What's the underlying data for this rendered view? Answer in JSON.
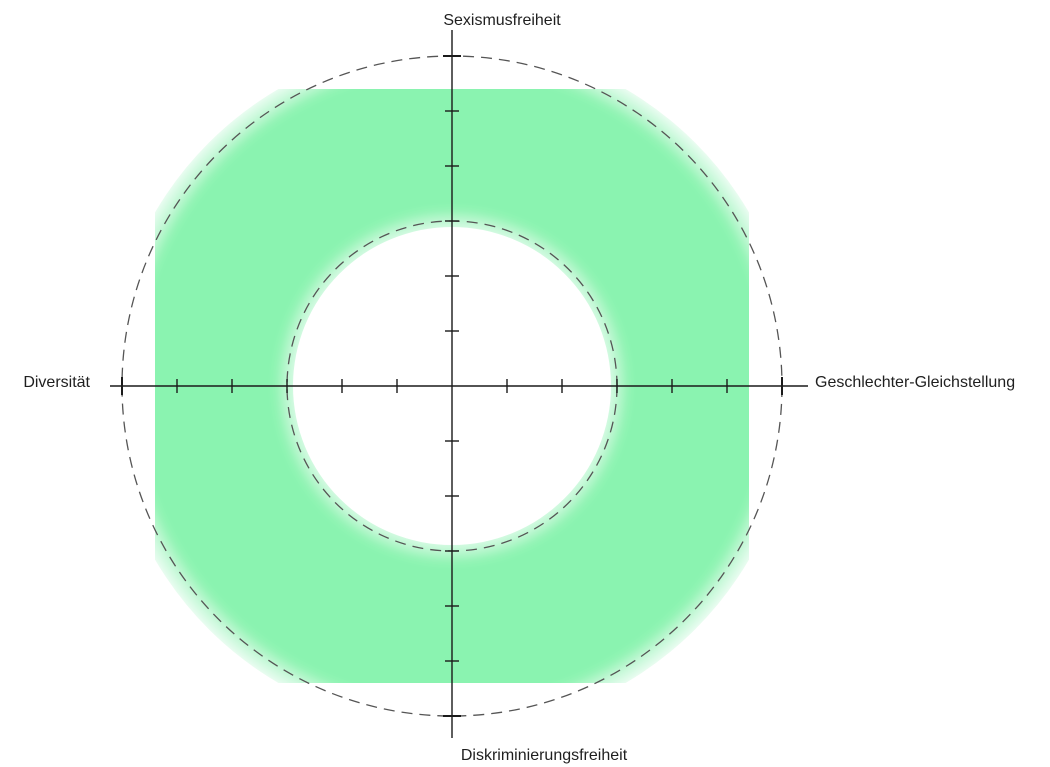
{
  "axes": {
    "top": "Sexismusfreiheit",
    "bottom": "Diskriminierungsfreiheit",
    "left": "Diversität",
    "right": "Geschlechter-Gleichstellung"
  },
  "colors": {
    "ring_fill": "#7ff2a8",
    "ring_edge": "#c9f8da",
    "axis_line": "#1a1a1a",
    "dashed_circle": "#555555",
    "background": "#ffffff"
  },
  "scale": {
    "ticks_per_half_axis": 6,
    "inner_boundary_tick": 3,
    "outer_boundary_tick": 6
  }
}
